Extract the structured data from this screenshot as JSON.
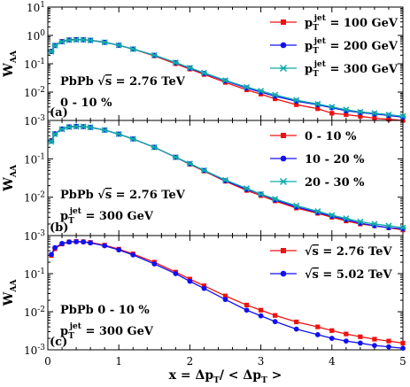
{
  "chart_data": [
    {
      "type": "scatter",
      "panel_label": "(a)",
      "ylabel": "W",
      "ylabel_sub": "AA",
      "xlim": [
        0,
        5
      ],
      "ylim_log10": [
        -3,
        1
      ],
      "y_tick_labels": [
        {
          "base": "10",
          "exp": "-3"
        },
        {
          "base": "10",
          "exp": "-2"
        },
        {
          "base": "10",
          "exp": "-1"
        },
        {
          "base": "10",
          "exp": "0"
        },
        {
          "base": "10",
          "exp": "1"
        }
      ],
      "annotations": [
        {
          "label": "PbPb",
          "sqrt_s": "= 2.76 TeV"
        },
        {
          "text": "0 - 10 %"
        }
      ],
      "legend_position": "top-right",
      "series": [
        {
          "name": "p_T^jet = 100 GeV",
          "legend": {
            "sym": "p",
            "sub": "T",
            "sup": "jet",
            "rest": " = 100 GeV"
          },
          "color": "#ee1111",
          "marker": "square",
          "x": [
            0.05,
            0.1,
            0.2,
            0.3,
            0.4,
            0.5,
            0.6,
            0.8,
            1.0,
            1.2,
            1.5,
            1.8,
            2.0,
            2.2,
            2.5,
            2.8,
            3.0,
            3.2,
            3.5,
            3.8,
            4.0,
            4.2,
            4.4,
            4.6,
            4.8,
            5.0
          ],
          "y": [
            0.28,
            0.45,
            0.62,
            0.7,
            0.72,
            0.71,
            0.68,
            0.58,
            0.45,
            0.33,
            0.19,
            0.1,
            0.065,
            0.042,
            0.022,
            0.012,
            0.0085,
            0.0058,
            0.0036,
            0.0026,
            0.0018,
            0.0016,
            0.0014,
            0.0012,
            0.0011,
            0.001
          ]
        },
        {
          "name": "p_T^jet = 200 GeV",
          "legend": {
            "sym": "p",
            "sub": "T",
            "sup": "jet",
            "rest": " = 200 GeV"
          },
          "color": "#1111ee",
          "marker": "circle",
          "x": [
            0.05,
            0.1,
            0.2,
            0.3,
            0.4,
            0.5,
            0.6,
            0.8,
            1.0,
            1.2,
            1.5,
            1.8,
            2.0,
            2.2,
            2.5,
            2.8,
            3.0,
            3.2,
            3.5,
            3.8,
            4.0,
            4.2,
            4.4,
            4.6,
            4.8,
            5.0
          ],
          "y": [
            0.27,
            0.44,
            0.6,
            0.69,
            0.71,
            0.7,
            0.67,
            0.57,
            0.45,
            0.33,
            0.2,
            0.11,
            0.07,
            0.046,
            0.025,
            0.014,
            0.01,
            0.0072,
            0.0048,
            0.0036,
            0.0028,
            0.0022,
            0.0019,
            0.0017,
            0.0015,
            0.0013
          ]
        },
        {
          "name": "p_T^jet = 300 GeV",
          "legend": {
            "sym": "p",
            "sub": "T",
            "sup": "jet",
            "rest": " = 300 GeV"
          },
          "color": "#11aaaa",
          "marker": "star",
          "x": [
            0.05,
            0.1,
            0.2,
            0.3,
            0.4,
            0.5,
            0.6,
            0.8,
            1.0,
            1.2,
            1.5,
            1.8,
            2.0,
            2.2,
            2.5,
            2.8,
            3.0,
            3.2,
            3.5,
            3.8,
            4.0,
            4.2,
            4.4,
            4.6,
            4.8,
            5.0
          ],
          "y": [
            0.27,
            0.44,
            0.6,
            0.68,
            0.7,
            0.7,
            0.67,
            0.57,
            0.45,
            0.33,
            0.2,
            0.11,
            0.072,
            0.048,
            0.026,
            0.015,
            0.011,
            0.008,
            0.0052,
            0.0038,
            0.003,
            0.0024,
            0.002,
            0.0018,
            0.0016,
            0.0014
          ]
        }
      ]
    },
    {
      "type": "scatter",
      "panel_label": "(b)",
      "ylabel": "W",
      "ylabel_sub": "AA",
      "xlim": [
        0,
        5
      ],
      "ylim_log10": [
        -3,
        0
      ],
      "y_tick_labels": [
        {
          "base": "10",
          "exp": "-3"
        },
        {
          "base": "10",
          "exp": "-2"
        },
        {
          "base": "10",
          "exp": "-1"
        }
      ],
      "annotations": [
        {
          "label": "PbPb",
          "sqrt_s": "= 2.76 TeV"
        },
        {
          "pt": {
            "sym": "p",
            "sub": "T",
            "sup": "jet",
            "rest": " = 300 GeV"
          }
        }
      ],
      "legend_position": "top-right",
      "series": [
        {
          "name": "0 - 10 %",
          "color": "#ee1111",
          "marker": "square",
          "x": [
            0.05,
            0.1,
            0.2,
            0.3,
            0.4,
            0.5,
            0.6,
            0.8,
            1.0,
            1.2,
            1.5,
            1.8,
            2.0,
            2.2,
            2.5,
            2.8,
            3.0,
            3.2,
            3.5,
            3.8,
            4.0,
            4.2,
            4.4,
            4.6,
            4.8,
            5.0
          ],
          "y": [
            0.3,
            0.45,
            0.6,
            0.68,
            0.7,
            0.69,
            0.66,
            0.56,
            0.44,
            0.33,
            0.2,
            0.11,
            0.072,
            0.048,
            0.026,
            0.015,
            0.011,
            0.008,
            0.0052,
            0.0038,
            0.003,
            0.0024,
            0.002,
            0.0018,
            0.0016,
            0.0014
          ]
        },
        {
          "name": "10 - 20 %",
          "color": "#1111ee",
          "marker": "circle",
          "x": [
            0.05,
            0.1,
            0.2,
            0.3,
            0.4,
            0.5,
            0.6,
            0.8,
            1.0,
            1.2,
            1.5,
            1.8,
            2.0,
            2.2,
            2.5,
            2.8,
            3.0,
            3.2,
            3.5,
            3.8,
            4.0,
            4.2,
            4.4,
            4.6,
            4.8,
            5.0
          ],
          "y": [
            0.29,
            0.45,
            0.6,
            0.68,
            0.7,
            0.69,
            0.66,
            0.56,
            0.44,
            0.33,
            0.2,
            0.11,
            0.074,
            0.05,
            0.027,
            0.016,
            0.012,
            0.0085,
            0.0056,
            0.004,
            0.0032,
            0.0026,
            0.0021,
            0.0018,
            0.0016,
            0.0015
          ]
        },
        {
          "name": "20 - 30 %",
          "color": "#11aaaa",
          "marker": "star",
          "x": [
            0.05,
            0.1,
            0.2,
            0.3,
            0.4,
            0.5,
            0.6,
            0.8,
            1.0,
            1.2,
            1.5,
            1.8,
            2.0,
            2.2,
            2.5,
            2.8,
            3.0,
            3.2,
            3.5,
            3.8,
            4.0,
            4.2,
            4.4,
            4.6,
            4.8,
            5.0
          ],
          "y": [
            0.28,
            0.44,
            0.59,
            0.67,
            0.69,
            0.69,
            0.66,
            0.56,
            0.44,
            0.33,
            0.2,
            0.11,
            0.075,
            0.05,
            0.028,
            0.017,
            0.012,
            0.009,
            0.006,
            0.0043,
            0.0034,
            0.0028,
            0.0023,
            0.002,
            0.0018,
            0.0016
          ]
        }
      ]
    },
    {
      "type": "scatter",
      "panel_label": "(c)",
      "ylabel": "W",
      "ylabel_sub": "AA",
      "xlabel": "x = Δp_T / < Δp_T >",
      "xlabel_parts": {
        "a": "x = Δp",
        "sub1": "T",
        "b": "/ < Δp",
        "sub2": "T",
        "c": " >"
      },
      "xlim": [
        0,
        5
      ],
      "x_tick_labels": [
        "0",
        "1",
        "2",
        "3",
        "4",
        "5"
      ],
      "ylim_log10": [
        -3,
        0
      ],
      "y_tick_labels": [
        {
          "base": "10",
          "exp": "-3"
        },
        {
          "base": "10",
          "exp": "-2"
        },
        {
          "base": "10",
          "exp": "-1"
        }
      ],
      "annotations": [
        {
          "text": "PbPb 0 - 10 %"
        },
        {
          "pt": {
            "sym": "p",
            "sub": "T",
            "sup": "jet",
            "rest": " = 300 GeV"
          }
        }
      ],
      "legend_position": "top-right",
      "series": [
        {
          "name": "√s = 2.76 TeV",
          "legend": {
            "root": "s",
            "rest": " = 2.76 TeV"
          },
          "color": "#ee1111",
          "marker": "square",
          "x": [
            0.05,
            0.1,
            0.2,
            0.3,
            0.4,
            0.5,
            0.6,
            0.8,
            1.0,
            1.2,
            1.5,
            1.8,
            2.0,
            2.2,
            2.5,
            2.8,
            3.0,
            3.2,
            3.5,
            3.8,
            4.0,
            4.2,
            4.4,
            4.6,
            4.8,
            5.0
          ],
          "y": [
            0.3,
            0.45,
            0.6,
            0.68,
            0.7,
            0.69,
            0.66,
            0.56,
            0.44,
            0.33,
            0.2,
            0.11,
            0.072,
            0.048,
            0.026,
            0.015,
            0.011,
            0.008,
            0.0054,
            0.004,
            0.0032,
            0.0026,
            0.0022,
            0.0019,
            0.0017,
            0.0015
          ]
        },
        {
          "name": "√s = 5.02 TeV",
          "legend": {
            "root": "s",
            "rest": " = 5.02 TeV"
          },
          "color": "#1111ee",
          "marker": "circle",
          "x": [
            0.05,
            0.1,
            0.2,
            0.3,
            0.4,
            0.5,
            0.6,
            0.8,
            1.0,
            1.2,
            1.5,
            1.8,
            2.0,
            2.2,
            2.5,
            2.8,
            3.0,
            3.2,
            3.5,
            3.8,
            4.0,
            4.2,
            4.4,
            4.6,
            4.8,
            5.0
          ],
          "y": [
            0.32,
            0.48,
            0.62,
            0.68,
            0.69,
            0.68,
            0.64,
            0.54,
            0.42,
            0.31,
            0.18,
            0.1,
            0.063,
            0.041,
            0.021,
            0.011,
            0.0078,
            0.0055,
            0.0035,
            0.0025,
            0.002,
            0.0017,
            0.0015,
            0.0013,
            0.0012,
            0.0011
          ]
        }
      ]
    }
  ]
}
